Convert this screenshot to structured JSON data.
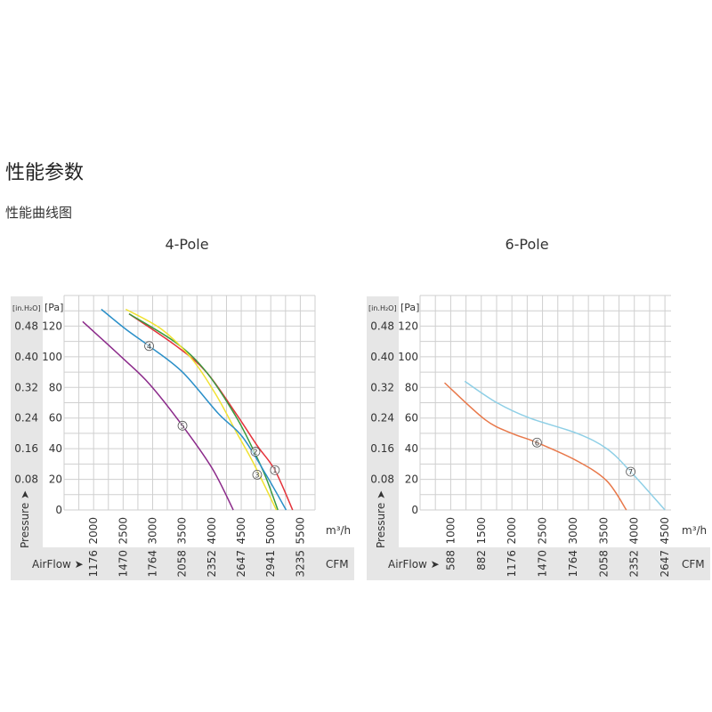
{
  "page": {
    "title": "性能参数",
    "subtitle": "性能曲线图"
  },
  "chart_data": [
    {
      "type": "line",
      "title": "4-Pole",
      "xlabel": "m³/h",
      "x2label": "CFM",
      "airflow_label": "AirFlow",
      "ylabel": "Pressure",
      "ylabel_unit_pa": "[Pa]",
      "ylabel_unit_inh2o": "[in.H₂O]",
      "xlim": [
        1500,
        5750
      ],
      "ylim": [
        0,
        140
      ],
      "grid": true,
      "x_ticks": [
        "2000",
        "2500",
        "3000",
        "3500",
        "4000",
        "4500",
        "5000",
        "5500"
      ],
      "x_tick_values": [
        2000,
        2500,
        3000,
        3500,
        4000,
        4500,
        5000,
        5500
      ],
      "cfm_ticks": [
        "1176",
        "1470",
        "1764",
        "2058",
        "2352",
        "2647",
        "2941",
        "3235"
      ],
      "y_ticks": [
        "0",
        "20",
        "40",
        "60",
        "80",
        "100",
        "120"
      ],
      "y_tick_values": [
        0,
        20,
        40,
        60,
        80,
        100,
        120
      ],
      "inh2o_ticks": [
        "0.08",
        "0.16",
        "0.24",
        "0.32",
        "0.40",
        "0.48"
      ],
      "series": [
        {
          "name": "1",
          "color": "#e4323a",
          "label_at": [
            5070,
            26
          ],
          "x": [
            2600,
            3400,
            3910,
            4410,
            4770,
            5070,
            5370
          ],
          "y": [
            128,
            107,
            90,
            63,
            42,
            26,
            0
          ]
        },
        {
          "name": "2",
          "color": "#3a9a3e",
          "label_at": [
            4740,
            38
          ],
          "x": [
            2600,
            3400,
            3910,
            4410,
            4720,
            4920,
            5120
          ],
          "y": [
            128,
            109,
            90,
            61,
            38,
            21,
            0
          ]
        },
        {
          "name": "3",
          "color": "#f0e232",
          "label_at": [
            4770,
            23
          ],
          "x": [
            2545,
            3150,
            3655,
            4060,
            4415,
            4715,
            5095
          ],
          "y": [
            131,
            118,
            99,
            76,
            51,
            30,
            0
          ]
        },
        {
          "name": "4",
          "color": "#2a8fc8",
          "label_at": [
            2940,
            107
          ],
          "x": [
            2130,
            2545,
            2940,
            3505,
            4110,
            4515,
            4920,
            5260
          ],
          "y": [
            131,
            118,
            107,
            90,
            63,
            48,
            23,
            0
          ]
        },
        {
          "name": "5",
          "color": "#8b2a8a",
          "label_at": [
            3505,
            55
          ],
          "x": [
            1815,
            2495,
            2950,
            3505,
            4010,
            4365
          ],
          "y": [
            123,
            99,
            82,
            55,
            27,
            0
          ]
        }
      ]
    },
    {
      "type": "line",
      "title": "6-Pole",
      "xlabel": "m³/h",
      "x2label": "CFM",
      "airflow_label": "AirFlow",
      "ylabel": "Pressure",
      "ylabel_unit_pa": "[Pa]",
      "ylabel_unit_inh2o": "[in.H₂O]",
      "xlim": [
        500,
        4600
      ],
      "ylim": [
        0,
        140
      ],
      "grid": true,
      "x_ticks": [
        "1000",
        "1500",
        "2000",
        "2500",
        "3000",
        "3500",
        "4000",
        "4500"
      ],
      "x_tick_values": [
        1000,
        1500,
        2000,
        2500,
        3000,
        3500,
        4000,
        4500
      ],
      "cfm_ticks": [
        "588",
        "882",
        "1176",
        "1470",
        "1764",
        "2058",
        "2352",
        "2647"
      ],
      "y_ticks": [
        "0",
        "20",
        "40",
        "60",
        "80",
        "100",
        "120"
      ],
      "y_tick_values": [
        0,
        20,
        40,
        60,
        80,
        100,
        120
      ],
      "inh2o_ticks": [
        "0.08",
        "0.16",
        "0.24",
        "0.32",
        "0.40",
        "0.48"
      ],
      "series": [
        {
          "name": "6",
          "color": "#e8784a",
          "label_at": [
            2410,
            44
          ],
          "x": [
            900,
            1560,
            2000,
            2410,
            3065,
            3550,
            3870
          ],
          "y": [
            83,
            59,
            50,
            44,
            32,
            19,
            0
          ]
        },
        {
          "name": "7",
          "color": "#8ecfe6",
          "label_at": [
            3940,
            25
          ],
          "x": [
            1230,
            1755,
            2290,
            3065,
            3550,
            3940,
            4500
          ],
          "y": [
            84,
            70,
            60,
            50,
            40,
            25,
            0
          ]
        }
      ]
    }
  ]
}
